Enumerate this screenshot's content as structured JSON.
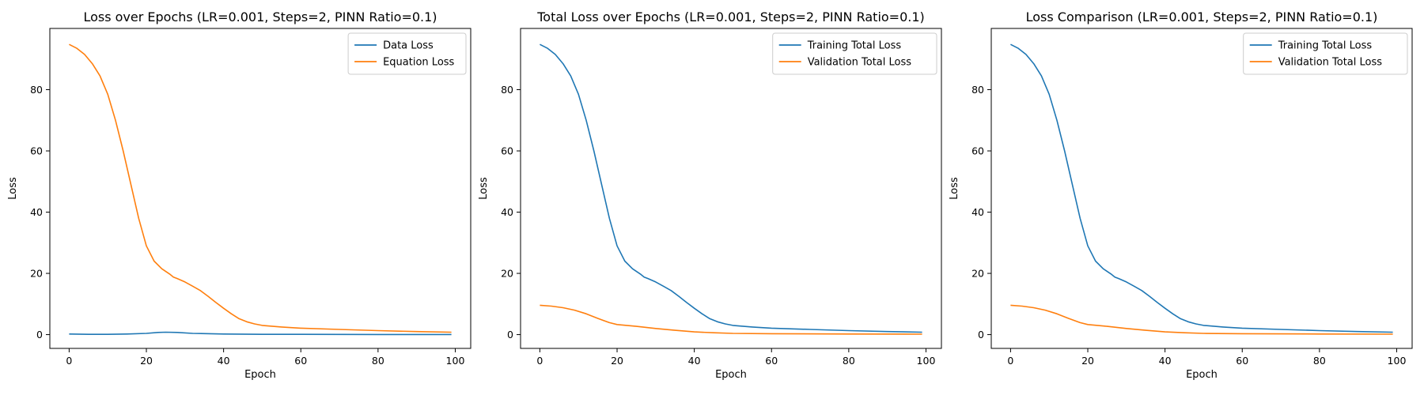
{
  "figure": {
    "background": "#ffffff"
  },
  "chart_data": [
    {
      "type": "line",
      "title": "Loss over Epochs (LR=0.001, Steps=2, PINN Ratio=0.1)",
      "xlabel": "Epoch",
      "ylabel": "Loss",
      "xlim": [
        -5,
        104
      ],
      "ylim": [
        -4.5,
        100
      ],
      "xticks": [
        0,
        20,
        40,
        60,
        80,
        100
      ],
      "yticks": [
        0,
        20,
        40,
        60,
        80
      ],
      "grid": false,
      "legend_position": "top-right",
      "series": [
        {
          "name": "Data Loss",
          "color": "#1f77b4",
          "points": [
            [
              0,
              0.2
            ],
            [
              5,
              0.1
            ],
            [
              10,
              0.1
            ],
            [
              15,
              0.2
            ],
            [
              20,
              0.4
            ],
            [
              23,
              0.7
            ],
            [
              25,
              0.8
            ],
            [
              28,
              0.7
            ],
            [
              32,
              0.4
            ],
            [
              40,
              0.2
            ],
            [
              50,
              0.1
            ],
            [
              60,
              0.1
            ],
            [
              80,
              0.05
            ],
            [
              99,
              0.05
            ]
          ]
        },
        {
          "name": "Equation Loss",
          "color": "#ff7f0e",
          "points": [
            [
              0,
              94.8
            ],
            [
              2,
              93.5
            ],
            [
              4,
              91.5
            ],
            [
              6,
              88.5
            ],
            [
              8,
              84.5
            ],
            [
              10,
              78.5
            ],
            [
              12,
              70
            ],
            [
              14,
              60
            ],
            [
              16,
              49
            ],
            [
              18,
              38
            ],
            [
              20,
              29
            ],
            [
              22,
              24
            ],
            [
              24,
              21.5
            ],
            [
              26,
              19.8
            ],
            [
              27,
              18.8
            ],
            [
              28,
              18.3
            ],
            [
              30,
              17.2
            ],
            [
              32,
              15.8
            ],
            [
              34,
              14.4
            ],
            [
              36,
              12.5
            ],
            [
              38,
              10.5
            ],
            [
              40,
              8.6
            ],
            [
              42,
              6.8
            ],
            [
              44,
              5.2
            ],
            [
              46,
              4.2
            ],
            [
              48,
              3.5
            ],
            [
              50,
              3.0
            ],
            [
              55,
              2.5
            ],
            [
              60,
              2.1
            ],
            [
              70,
              1.7
            ],
            [
              80,
              1.3
            ],
            [
              90,
              1.0
            ],
            [
              99,
              0.8
            ]
          ]
        }
      ]
    },
    {
      "type": "line",
      "title": "Total Loss over Epochs (LR=0.001, Steps=2, PINN Ratio=0.1)",
      "xlabel": "Epoch",
      "ylabel": "Loss",
      "xlim": [
        -5,
        104
      ],
      "ylim": [
        -4.5,
        100
      ],
      "xticks": [
        0,
        20,
        40,
        60,
        80,
        100
      ],
      "yticks": [
        0,
        20,
        40,
        60,
        80
      ],
      "grid": false,
      "legend_position": "top-right",
      "series": [
        {
          "name": "Training Total Loss",
          "color": "#1f77b4",
          "points": [
            [
              0,
              94.8
            ],
            [
              2,
              93.5
            ],
            [
              4,
              91.5
            ],
            [
              6,
              88.5
            ],
            [
              8,
              84.5
            ],
            [
              10,
              78.5
            ],
            [
              12,
              70
            ],
            [
              14,
              60
            ],
            [
              16,
              49
            ],
            [
              18,
              38
            ],
            [
              20,
              29
            ],
            [
              22,
              24
            ],
            [
              24,
              21.5
            ],
            [
              26,
              19.8
            ],
            [
              27,
              18.8
            ],
            [
              28,
              18.3
            ],
            [
              30,
              17.2
            ],
            [
              32,
              15.8
            ],
            [
              34,
              14.4
            ],
            [
              36,
              12.5
            ],
            [
              38,
              10.5
            ],
            [
              40,
              8.6
            ],
            [
              42,
              6.8
            ],
            [
              44,
              5.2
            ],
            [
              46,
              4.2
            ],
            [
              48,
              3.5
            ],
            [
              50,
              3.0
            ],
            [
              55,
              2.5
            ],
            [
              60,
              2.1
            ],
            [
              70,
              1.7
            ],
            [
              80,
              1.3
            ],
            [
              90,
              1.0
            ],
            [
              99,
              0.8
            ]
          ]
        },
        {
          "name": "Validation Total Loss",
          "color": "#ff7f0e",
          "points": [
            [
              0,
              9.6
            ],
            [
              3,
              9.3
            ],
            [
              6,
              8.8
            ],
            [
              9,
              8.0
            ],
            [
              12,
              6.8
            ],
            [
              15,
              5.3
            ],
            [
              18,
              3.9
            ],
            [
              20,
              3.3
            ],
            [
              25,
              2.7
            ],
            [
              30,
              2.0
            ],
            [
              35,
              1.4
            ],
            [
              40,
              0.9
            ],
            [
              45,
              0.6
            ],
            [
              50,
              0.4
            ],
            [
              60,
              0.3
            ],
            [
              80,
              0.2
            ],
            [
              99,
              0.15
            ]
          ]
        }
      ]
    },
    {
      "type": "line",
      "title": "Loss Comparison (LR=0.001, Steps=2, PINN Ratio=0.1)",
      "xlabel": "Epoch",
      "ylabel": "Loss",
      "xlim": [
        -5,
        104
      ],
      "ylim": [
        -4.5,
        100
      ],
      "xticks": [
        0,
        20,
        40,
        60,
        80,
        100
      ],
      "yticks": [
        0,
        20,
        40,
        60,
        80
      ],
      "grid": false,
      "legend_position": "top-right",
      "series": [
        {
          "name": "Training Total Loss",
          "color": "#1f77b4",
          "points": [
            [
              0,
              94.8
            ],
            [
              2,
              93.5
            ],
            [
              4,
              91.5
            ],
            [
              6,
              88.5
            ],
            [
              8,
              84.5
            ],
            [
              10,
              78.5
            ],
            [
              12,
              70
            ],
            [
              14,
              60
            ],
            [
              16,
              49
            ],
            [
              18,
              38
            ],
            [
              20,
              29
            ],
            [
              22,
              24
            ],
            [
              24,
              21.5
            ],
            [
              26,
              19.8
            ],
            [
              27,
              18.8
            ],
            [
              28,
              18.3
            ],
            [
              30,
              17.2
            ],
            [
              32,
              15.8
            ],
            [
              34,
              14.4
            ],
            [
              36,
              12.5
            ],
            [
              38,
              10.5
            ],
            [
              40,
              8.6
            ],
            [
              42,
              6.8
            ],
            [
              44,
              5.2
            ],
            [
              46,
              4.2
            ],
            [
              48,
              3.5
            ],
            [
              50,
              3.0
            ],
            [
              55,
              2.5
            ],
            [
              60,
              2.1
            ],
            [
              70,
              1.7
            ],
            [
              80,
              1.3
            ],
            [
              90,
              1.0
            ],
            [
              99,
              0.8
            ]
          ]
        },
        {
          "name": "Validation Total Loss",
          "color": "#ff7f0e",
          "points": [
            [
              0,
              9.6
            ],
            [
              3,
              9.3
            ],
            [
              6,
              8.8
            ],
            [
              9,
              8.0
            ],
            [
              12,
              6.8
            ],
            [
              15,
              5.3
            ],
            [
              18,
              3.9
            ],
            [
              20,
              3.3
            ],
            [
              25,
              2.7
            ],
            [
              30,
              2.0
            ],
            [
              35,
              1.4
            ],
            [
              40,
              0.9
            ],
            [
              45,
              0.6
            ],
            [
              50,
              0.4
            ],
            [
              60,
              0.3
            ],
            [
              80,
              0.2
            ],
            [
              99,
              0.15
            ]
          ]
        }
      ]
    }
  ]
}
